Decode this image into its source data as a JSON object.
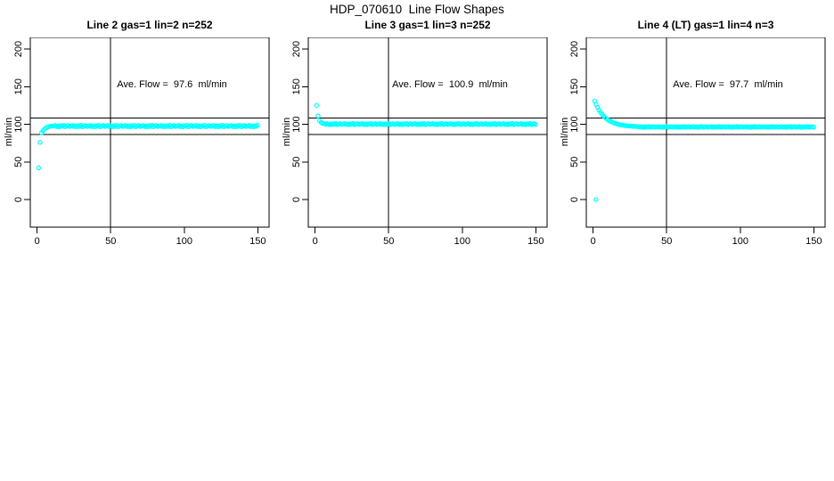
{
  "figure": {
    "title": "HDP_070610  Line Flow Shapes"
  },
  "chart_data": [
    {
      "type": "scatter",
      "title": "Line 2 gas=1 lin=2 n=252",
      "annotation": "Ave. Flow =  97.6  ml/min",
      "ave_flow_ml_min": 97.6,
      "n": 252,
      "xlabel": "",
      "ylabel": "ml/min",
      "x_ticks": [
        0,
        50,
        100,
        150
      ],
      "y_ticks": [
        0,
        50,
        100,
        150,
        200
      ],
      "xlim": [
        0,
        150
      ],
      "ylim": [
        0,
        200
      ],
      "ref_line_x": 50,
      "ref_lines_y": [
        108,
        86.5
      ],
      "point_color": "#00FFFF",
      "x_start": 1,
      "x_step": 1,
      "y": [
        42,
        76,
        88.5,
        91.5,
        93.5,
        95,
        96.2,
        97,
        97.4,
        97.7,
        97.6,
        98.5,
        96.9,
        98,
        96.6,
        98.2,
        97.3,
        98.7,
        96.7,
        97.9,
        98.3,
        97.1,
        97.6,
        98.5,
        96.9,
        98,
        96.6,
        98.2,
        97.3,
        98.7,
        96.7,
        97.9,
        98.3,
        97.1,
        97.6,
        98.5,
        96.9,
        98,
        96.6,
        98.2,
        97.3,
        98.7,
        96.7,
        97.9,
        98.3,
        97.1,
        97.6,
        98.5,
        96.9,
        98,
        96.6,
        98.2,
        97.3,
        98.7,
        96.7,
        97.9,
        98.3,
        97.1,
        97.6,
        98.5,
        96.9,
        98,
        96.6,
        98.2,
        97.3,
        98.7,
        96.7,
        97.9,
        98.3,
        97.1,
        97.6,
        98.5,
        96.9,
        98,
        96.6,
        98.2,
        97.3,
        98.7,
        96.7,
        97.9,
        98.3,
        97.1,
        97.6,
        98.5,
        96.9,
        98,
        96.6,
        98.2,
        97.3,
        98.7,
        96.7,
        97.9,
        98.3,
        97.1,
        97.6,
        98.5,
        96.9,
        98,
        96.6,
        98.2,
        97.3,
        98.7,
        96.7,
        97.9,
        98.3,
        97.1,
        97.6,
        98.5,
        96.9,
        98,
        96.6,
        98.2,
        97.3,
        98.7,
        96.7,
        97.9,
        98.3,
        97.1,
        97.6,
        98.5,
        96.9,
        98,
        96.6,
        98.2,
        97.3,
        98.7,
        96.7,
        97.9,
        98.3,
        97.1,
        97.6,
        98.5,
        96.9,
        98,
        96.6,
        98.2,
        97.3,
        98.7,
        96.7,
        97.9,
        98.3,
        97.1,
        97.6,
        98.5,
        96.9,
        98,
        96.6,
        98.2,
        97.3,
        98.7
      ],
      "extra_points": []
    },
    {
      "type": "scatter",
      "title": "Line 3 gas=1 lin=3 n=252",
      "annotation": "Ave. Flow =  100.9  ml/min",
      "ave_flow_ml_min": 100.9,
      "n": 252,
      "xlabel": "",
      "ylabel": "ml/min",
      "x_ticks": [
        0,
        50,
        100,
        150
      ],
      "y_ticks": [
        0,
        50,
        100,
        150,
        200
      ],
      "xlim": [
        0,
        150
      ],
      "ylim": [
        0,
        200
      ],
      "ref_line_x": 50,
      "ref_lines_y": [
        108,
        86.5
      ],
      "point_color": "#00FFFF",
      "x_start": 1,
      "x_step": 1,
      "y": [
        125,
        111,
        105,
        102.5,
        101.2,
        100.6,
        100.2,
        100.9,
        99.6,
        100.5,
        99.4,
        100.7,
        100,
        101.1,
        99.5,
        100.4,
        100.8,
        99.8,
        100.2,
        100.9,
        99.6,
        100.5,
        99.4,
        100.7,
        100,
        101.1,
        99.5,
        100.4,
        100.8,
        99.8,
        100.2,
        100.9,
        99.6,
        100.5,
        99.4,
        100.7,
        100,
        101.1,
        99.5,
        100.4,
        100.8,
        99.8,
        100.2,
        100.9,
        99.6,
        100.5,
        99.4,
        100.7,
        100,
        101.1,
        99.5,
        100.4,
        100.8,
        99.8,
        100.2,
        100.9,
        99.6,
        100.5,
        99.4,
        100.7,
        100,
        101.1,
        99.5,
        100.4,
        100.8,
        99.8,
        100.2,
        100.9,
        99.6,
        100.5,
        99.4,
        100.7,
        100,
        101.1,
        99.5,
        100.4,
        100.8,
        99.8,
        100.2,
        100.9,
        99.6,
        100.5,
        99.4,
        100.7,
        100,
        101.1,
        99.5,
        100.4,
        100.8,
        99.8,
        100.2,
        100.9,
        99.6,
        100.5,
        99.4,
        100.7,
        100,
        101.1,
        99.5,
        100.4,
        100.8,
        99.8,
        100.2,
        100.9,
        99.6,
        100.5,
        99.4,
        100.7,
        100,
        101.1,
        99.5,
        100.4,
        100.8,
        99.8,
        100.2,
        100.9,
        99.6,
        100.5,
        99.4,
        100.7,
        100,
        101.1,
        99.5,
        100.4,
        100.8,
        99.8,
        100.2,
        100.9,
        99.6,
        100.5,
        99.4,
        100.7,
        100,
        101.1,
        99.5,
        100.4,
        100.8,
        99.8,
        100.2,
        100.9,
        99.6,
        100.5,
        99.4,
        100.7,
        100,
        101.1,
        99.5,
        100.4,
        100.8,
        99.8
      ],
      "extra_points": []
    },
    {
      "type": "scatter",
      "title": "Line 4 (LT) gas=1 lin=4 n=3",
      "annotation": "Ave. Flow =  97.7  ml/min",
      "ave_flow_ml_min": 97.7,
      "n": 3,
      "xlabel": "",
      "ylabel": "ml/min",
      "x_ticks": [
        0,
        50,
        100,
        150
      ],
      "y_ticks": [
        0,
        50,
        100,
        150,
        200
      ],
      "xlim": [
        0,
        150
      ],
      "ylim": [
        0,
        200
      ],
      "ref_line_x": 50,
      "ref_lines_y": [
        108,
        86.5
      ],
      "point_color": "#00FFFF",
      "x_start": 1,
      "x_step": 1,
      "y": [
        131,
        126.4,
        122.4,
        118.9,
        116,
        113.4,
        111.1,
        109.2,
        107.5,
        106,
        104.7,
        103.6,
        102.7,
        101.9,
        101.2,
        100.5,
        100,
        99.5,
        99.1,
        98.8,
        98.5,
        98.2,
        98,
        97.8,
        97.6,
        97.5,
        97.3,
        97.2,
        97.1,
        97,
        96.4,
        96.9,
        96,
        96.6,
        95.8,
        96.8,
        96.2,
        97.1,
        95.9,
        96.6,
        96.8,
        96.1,
        96.4,
        96.9,
        96,
        96.6,
        95.8,
        96.8,
        96.2,
        97.1,
        95.9,
        96.6,
        96.8,
        96.1,
        96.4,
        96.9,
        96,
        96.6,
        95.8,
        96.8,
        96.2,
        97.1,
        95.9,
        96.6,
        96.8,
        96.1,
        96.4,
        96.9,
        96,
        96.6,
        95.8,
        96.8,
        96.2,
        97.1,
        95.9,
        96.6,
        96.8,
        96.1,
        96.4,
        96.9,
        96,
        96.6,
        95.8,
        96.8,
        96.2,
        97.1,
        95.9,
        96.6,
        96.8,
        96.1,
        96.4,
        96.9,
        96,
        96.6,
        95.8,
        96.8,
        96.2,
        97.1,
        95.9,
        96.6,
        96.8,
        96.1,
        96.4,
        96.9,
        96,
        96.6,
        95.8,
        96.8,
        96.2,
        97.1,
        95.9,
        96.6,
        96.8,
        96.1,
        96.4,
        96.9,
        96,
        96.6,
        95.8,
        96.8,
        96.2,
        97.1,
        95.9,
        96.6,
        96.8,
        96.1,
        96.4,
        96.9,
        96,
        96.6,
        95.8,
        96.8,
        96.2,
        97.1,
        95.9,
        96.6,
        96.8,
        96.1,
        96.4,
        96.9,
        96,
        96.6,
        95.8,
        96.8,
        96.2,
        97.1,
        95.9,
        96.6,
        96.8,
        96.1
      ],
      "extra_points": [
        [
          2,
          0
        ]
      ]
    }
  ]
}
